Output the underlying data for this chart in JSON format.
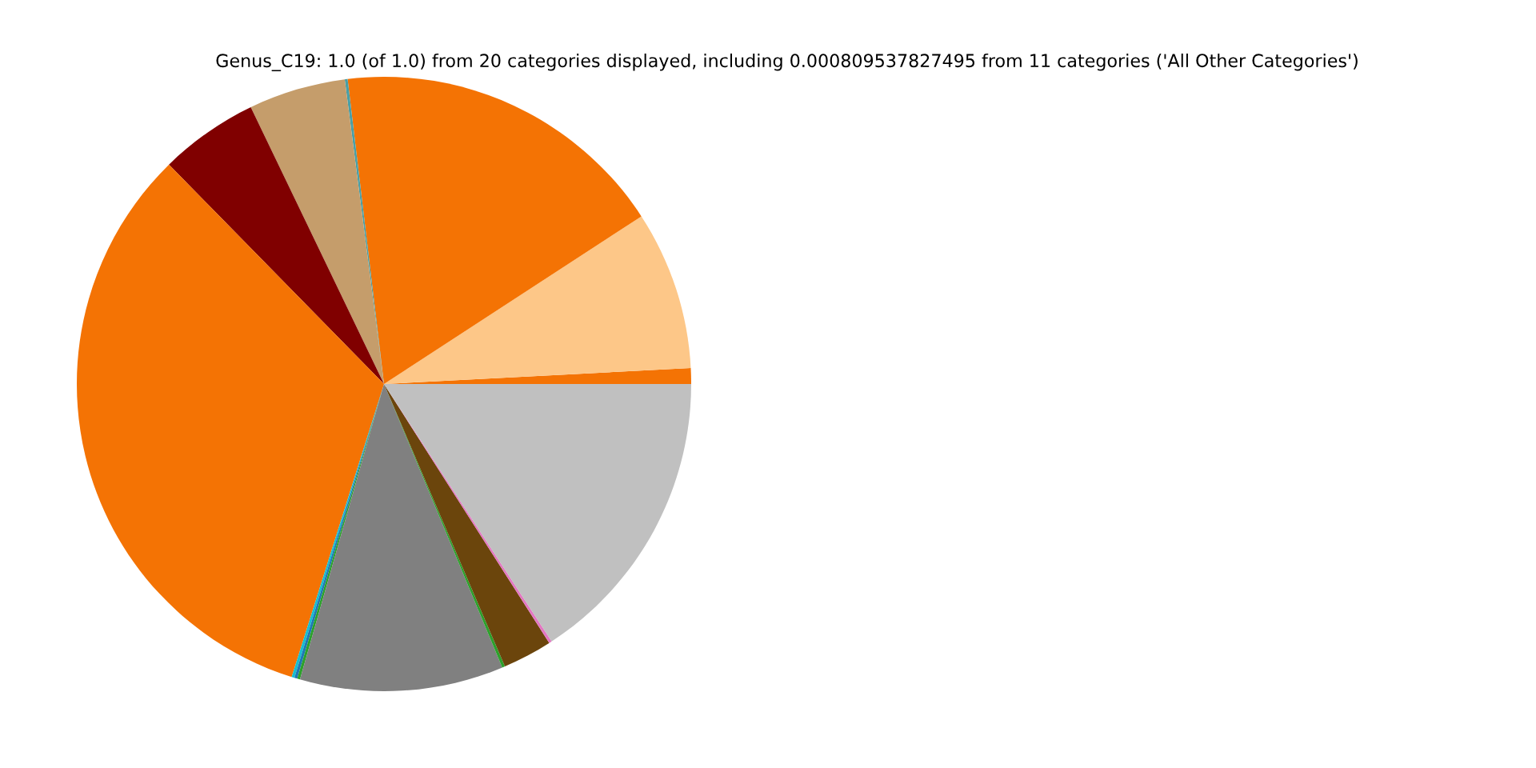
{
  "chart_data": {
    "type": "pie",
    "title": "Genus_C19: 1.0 (of 1.0) from 20 categories displayed, including 0.000809537827495 from 11 categories ('All Other Categories')",
    "categories": [
      null,
      null,
      null,
      null,
      null,
      null,
      null,
      null,
      null,
      null,
      null,
      null,
      null,
      null,
      null
    ],
    "values": [
      0.83,
      8.36,
      17.7,
      0.15,
      5.1,
      5.2,
      32.8,
      0.15,
      0.15,
      0.15,
      10.7,
      0.15,
      2.6,
      0.15,
      15.81
    ],
    "colors": [
      "#f47304",
      "#fdc788",
      "#f47304",
      "#4a9fa5",
      "#c59d6b",
      "#800000",
      "#f47304",
      "#17becf",
      "#1f77b4",
      "#2ca02c",
      "#808080",
      "#2ca02c",
      "#6b450c",
      "#e377c2",
      "#c0c0c0"
    ]
  }
}
